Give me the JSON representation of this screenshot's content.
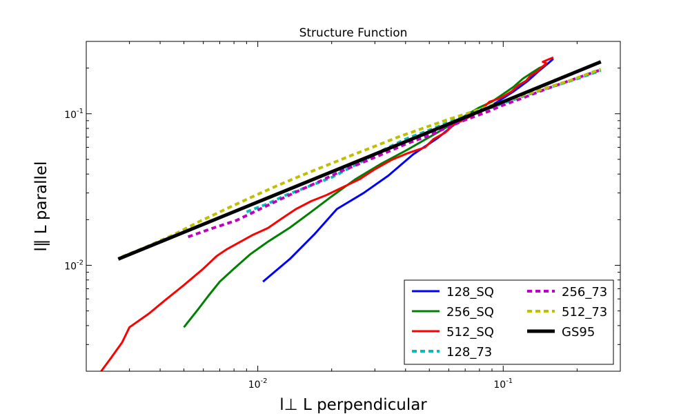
{
  "chart_data": {
    "type": "line",
    "title": "Structure Function",
    "xlabel": "l⊥ L perpendicular",
    "ylabel": "l∥ L parallel",
    "xscale": "log",
    "yscale": "log",
    "xlim": [
      0.002,
      0.3
    ],
    "ylim": [
      0.002,
      0.3
    ],
    "x_ticks": [
      {
        "value": 0.01,
        "base": "10",
        "exp": "-2"
      },
      {
        "value": 0.1,
        "base": "10",
        "exp": "-1"
      }
    ],
    "y_ticks": [
      {
        "value": 0.01,
        "base": "10",
        "exp": "-2"
      },
      {
        "value": 0.1,
        "base": "10",
        "exp": "-1"
      }
    ],
    "grid": false,
    "legend_position": "lower-right",
    "legend_columns": 2,
    "series": [
      {
        "name": "128_SQ",
        "color": "#0000ff",
        "style": "solid",
        "x": [
          0.0105,
          0.0135,
          0.017,
          0.021,
          0.027,
          0.034,
          0.043,
          0.054,
          0.065,
          0.075,
          0.085,
          0.095,
          0.11,
          0.125,
          0.14,
          0.15,
          0.16
        ],
        "y": [
          0.0078,
          0.011,
          0.016,
          0.0235,
          0.03,
          0.039,
          0.054,
          0.069,
          0.088,
          0.1,
          0.108,
          0.12,
          0.14,
          0.163,
          0.192,
          0.21,
          0.23
        ]
      },
      {
        "name": "256_SQ",
        "color": "#008000",
        "style": "solid",
        "x": [
          0.005,
          0.0057,
          0.0063,
          0.007,
          0.008,
          0.0093,
          0.011,
          0.0135,
          0.0165,
          0.02,
          0.025,
          0.032,
          0.04,
          0.05,
          0.06,
          0.07,
          0.08,
          0.09,
          0.1,
          0.11,
          0.12,
          0.13,
          0.14,
          0.15
        ],
        "y": [
          0.0039,
          0.0051,
          0.0063,
          0.0078,
          0.0095,
          0.0118,
          0.0143,
          0.0177,
          0.0225,
          0.0285,
          0.037,
          0.047,
          0.057,
          0.07,
          0.083,
          0.097,
          0.11,
          0.12,
          0.135,
          0.15,
          0.17,
          0.185,
          0.2,
          0.21
        ]
      },
      {
        "name": "512_SQ",
        "color": "#ff0000",
        "style": "solid",
        "x": [
          0.0023,
          0.0025,
          0.0028,
          0.003,
          0.0036,
          0.0042,
          0.005,
          0.006,
          0.0068,
          0.0075,
          0.0085,
          0.0095,
          0.011,
          0.0125,
          0.0143,
          0.0165,
          0.019,
          0.022,
          0.026,
          0.03,
          0.035,
          0.041,
          0.048,
          0.052,
          0.058,
          0.063,
          0.07,
          0.08,
          0.088,
          0.095,
          0.1,
          0.108,
          0.116,
          0.124,
          0.13,
          0.138,
          0.145,
          0.15,
          0.145,
          0.155,
          0.16
        ],
        "y": [
          0.002,
          0.0024,
          0.0031,
          0.0039,
          0.0048,
          0.0059,
          0.0074,
          0.0095,
          0.0115,
          0.0128,
          0.0143,
          0.0158,
          0.0176,
          0.0203,
          0.0235,
          0.0265,
          0.029,
          0.0325,
          0.037,
          0.043,
          0.0495,
          0.055,
          0.06,
          0.068,
          0.075,
          0.085,
          0.092,
          0.104,
          0.12,
          0.125,
          0.13,
          0.14,
          0.155,
          0.165,
          0.18,
          0.19,
          0.205,
          0.215,
          0.22,
          0.23,
          0.235
        ]
      },
      {
        "name": "128_73",
        "color": "#00bfbf",
        "style": "dashed",
        "x": [
          0.009,
          0.011,
          0.013,
          0.016,
          0.02,
          0.025,
          0.032,
          0.04,
          0.05,
          0.06,
          0.07,
          0.08,
          0.09,
          0.1,
          0.12,
          0.15,
          0.2,
          0.25
        ],
        "y": [
          0.0225,
          0.0255,
          0.029,
          0.033,
          0.038,
          0.046,
          0.057,
          0.068,
          0.078,
          0.088,
          0.096,
          0.104,
          0.11,
          0.117,
          0.13,
          0.147,
          0.17,
          0.193
        ]
      },
      {
        "name": "256_73",
        "color": "#bf00bf",
        "style": "dashed",
        "x": [
          0.0052,
          0.0065,
          0.0082,
          0.0102,
          0.0125,
          0.015,
          0.018,
          0.022,
          0.027,
          0.033,
          0.04,
          0.05,
          0.06,
          0.07,
          0.085,
          0.1,
          0.12,
          0.15,
          0.2,
          0.25
        ],
        "y": [
          0.0154,
          0.0175,
          0.0198,
          0.0235,
          0.0275,
          0.0315,
          0.036,
          0.042,
          0.048,
          0.055,
          0.063,
          0.072,
          0.082,
          0.091,
          0.102,
          0.114,
          0.127,
          0.146,
          0.172,
          0.195
        ]
      },
      {
        "name": "512_73",
        "color": "#bfbf00",
        "style": "dashed",
        "x": [
          0.0028,
          0.0035,
          0.0045,
          0.0058,
          0.0075,
          0.0095,
          0.012,
          0.015,
          0.019,
          0.024,
          0.03,
          0.038,
          0.048,
          0.06,
          0.075,
          0.095,
          0.12,
          0.15,
          0.19,
          0.25
        ],
        "y": [
          0.0114,
          0.0132,
          0.0158,
          0.0195,
          0.0237,
          0.0283,
          0.0335,
          0.039,
          0.0455,
          0.053,
          0.061,
          0.071,
          0.081,
          0.092,
          0.103,
          0.117,
          0.132,
          0.148,
          0.167,
          0.197
        ]
      },
      {
        "name": "GS95",
        "color": "#000000",
        "style": "solid-thick",
        "x": [
          0.0027,
          0.25
        ],
        "y": [
          0.011,
          0.22
        ]
      }
    ]
  }
}
